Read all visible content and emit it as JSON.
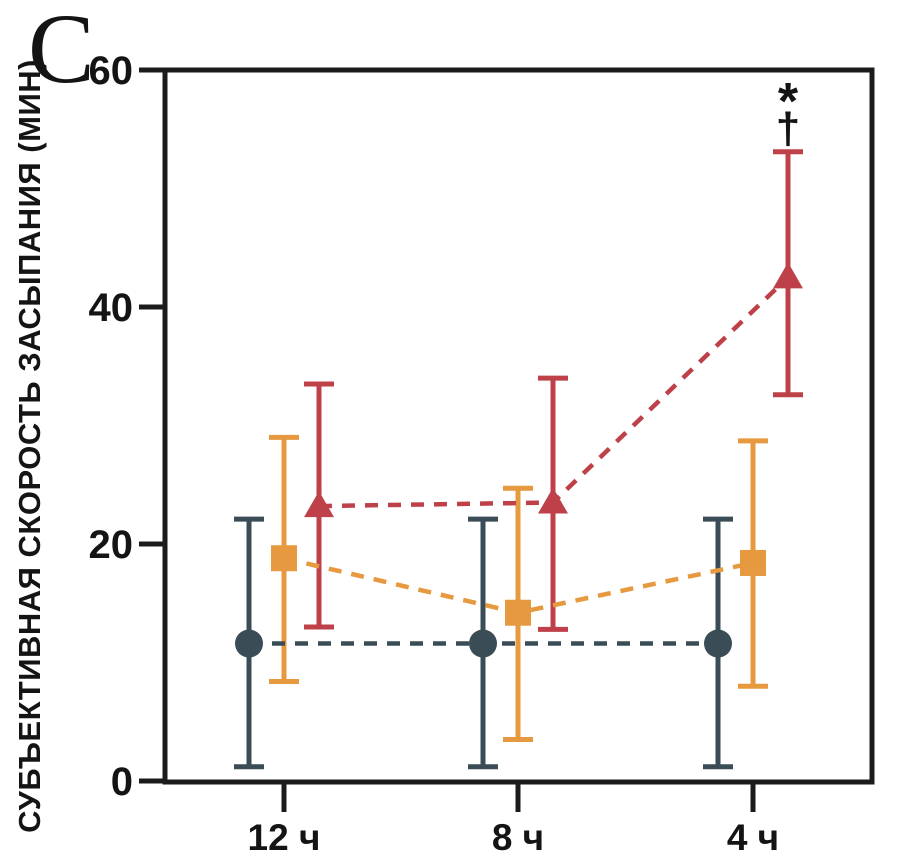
{
  "panel": {
    "label": "C"
  },
  "chart_data": {
    "type": "line",
    "title": "",
    "ylabel": "СУБЪЕКТИВНАЯ СКОРОСТЬ ЗАСЫПАНИЯ (МИН)",
    "xlabel": "",
    "categories": [
      "12 ч",
      "8 ч",
      "4 ч"
    ],
    "ylim": [
      0,
      60
    ],
    "yticks": [
      "0",
      "20",
      "40",
      "60"
    ],
    "grid": false,
    "legend": false,
    "frame": true,
    "line_style": "dashed",
    "ink_color": "#1b1b1b",
    "series": [
      {
        "name": "dark-circles",
        "marker": "circle",
        "color": "#3a4c56",
        "values": [
          11.6,
          11.6,
          11.6
        ],
        "err_low": [
          1.2,
          1.2,
          1.2
        ],
        "err_high": [
          22.1,
          22.1,
          22.1
        ],
        "x_offset": -35
      },
      {
        "name": "orange-squares",
        "marker": "square",
        "color": "#e6993f",
        "values": [
          18.8,
          14.2,
          18.4
        ],
        "err_low": [
          8.4,
          3.5,
          8.0
        ],
        "err_high": [
          29.0,
          24.7,
          28.7
        ],
        "x_offset": 0
      },
      {
        "name": "red-triangles",
        "marker": "triangle",
        "color": "#be4149",
        "values": [
          23.2,
          23.5,
          42.5
        ],
        "err_low": [
          13.0,
          12.8,
          32.6
        ],
        "err_high": [
          33.5,
          34.0,
          53.1
        ],
        "x_offset": 35
      }
    ],
    "annotations": [
      {
        "text": "*",
        "series": "red-triangles",
        "category_index": 2,
        "slot": 0
      },
      {
        "text": "†",
        "series": "red-triangles",
        "category_index": 2,
        "slot": 1
      }
    ]
  }
}
